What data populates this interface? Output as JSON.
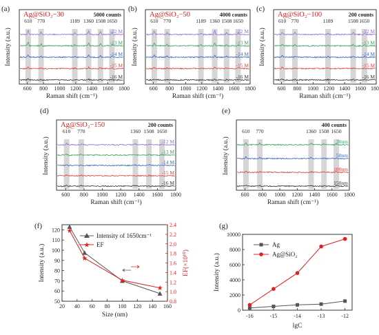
{
  "figure": {
    "panel_letters": [
      "(a)",
      "(b)",
      "(c)",
      "(d)",
      "(e)",
      "(f)",
      "(g)"
    ]
  },
  "chart_data": [
    {
      "id": "a",
      "type": "line",
      "title": "Ag@SiO₂−30",
      "scale_label": "5000 counts",
      "xlabel": "Raman shift (cm⁻¹)",
      "ylabel": "Intensity (a.u.)",
      "xlim": [
        500,
        1800
      ],
      "xticks": [
        600,
        800,
        1000,
        1200,
        1400,
        1600,
        1800
      ],
      "peaks": [
        {
          "x": 610,
          "label": "610"
        },
        {
          "x": 770,
          "label": "770"
        },
        {
          "x": 1189,
          "label": "1189"
        },
        {
          "x": 1360,
          "label": "1360"
        },
        {
          "x": 1508,
          "label": "1508"
        },
        {
          "x": 1650,
          "label": "1650"
        }
      ],
      "series": [
        {
          "name": "-12 M",
          "color": "#9370db",
          "amp": [
            6,
            4,
            2,
            5,
            4,
            3
          ]
        },
        {
          "name": "-13 M",
          "color": "#3aa060",
          "amp": [
            5,
            3,
            2,
            4,
            3,
            2
          ]
        },
        {
          "name": "-14 M",
          "color": "#3a66c8",
          "amp": [
            4,
            2,
            1.5,
            3,
            2,
            2
          ]
        },
        {
          "name": "-15 M",
          "color": "#e04040",
          "amp": [
            3,
            1.5,
            1,
            2,
            1.5,
            1.5
          ]
        },
        {
          "name": "-16 M",
          "color": "#333333",
          "amp": [
            2,
            1,
            0.5,
            1,
            1,
            1
          ]
        }
      ]
    },
    {
      "id": "b",
      "type": "line",
      "title": "Ag@SiO₂−50",
      "scale_label": "4000 counts",
      "xlabel": "Raman shift (cm⁻¹)",
      "ylabel": "Intensity (a.u.)",
      "xlim": [
        500,
        1800
      ],
      "xticks": [
        600,
        800,
        1000,
        1200,
        1400,
        1600,
        1800
      ],
      "peaks": [
        {
          "x": 610,
          "label": "610"
        },
        {
          "x": 770,
          "label": "770"
        },
        {
          "x": 1189,
          "label": "1189"
        },
        {
          "x": 1360,
          "label": "1360"
        },
        {
          "x": 1508,
          "label": "1508"
        },
        {
          "x": 1650,
          "label": "1650"
        }
      ],
      "series": [
        {
          "name": "-12 M",
          "color": "#9370db",
          "amp": [
            5,
            3,
            2,
            6,
            3,
            2
          ]
        },
        {
          "name": "-13 M",
          "color": "#3aa060",
          "amp": [
            4,
            2,
            1.5,
            4,
            2,
            1.5
          ]
        },
        {
          "name": "-14 M",
          "color": "#3a66c8",
          "amp": [
            3,
            1.5,
            1,
            3,
            1.5,
            1
          ]
        },
        {
          "name": "-15 M",
          "color": "#e04040",
          "amp": [
            2,
            1,
            0.5,
            2,
            1,
            1
          ]
        },
        {
          "name": "-16 M",
          "color": "#333333",
          "amp": [
            1,
            0.5,
            0.5,
            1,
            0.5,
            0.5
          ]
        }
      ]
    },
    {
      "id": "c",
      "type": "line",
      "title": "Ag@SiO₂−100",
      "scale_label": "200 counts",
      "xlabel": "Raman shift (cm⁻¹)",
      "ylabel": "Intensity (a.u.)",
      "xlim": [
        500,
        1800
      ],
      "xticks": [
        600,
        800,
        1000,
        1200,
        1400,
        1600,
        1800
      ],
      "peaks": [
        {
          "x": 610,
          "label": "610"
        },
        {
          "x": 770,
          "label": "770"
        },
        {
          "x": 1189,
          "label": "1189"
        },
        {
          "x": 1508,
          "label": "1508"
        },
        {
          "x": 1650,
          "label": "1650"
        }
      ],
      "series": [
        {
          "name": "-12 M",
          "color": "#9370db",
          "amp": [
            4,
            3,
            2,
            3,
            2
          ]
        },
        {
          "name": "-13 M",
          "color": "#3aa060",
          "amp": [
            3,
            2,
            1.5,
            2,
            1.5
          ]
        },
        {
          "name": "-14 M",
          "color": "#3a66c8",
          "amp": [
            2.5,
            1.5,
            1,
            1.5,
            1
          ]
        },
        {
          "name": "-15 M",
          "color": "#e04040",
          "amp": [
            2,
            1,
            1,
            1,
            1
          ]
        },
        {
          "name": "-16 M",
          "color": "#333333",
          "amp": [
            1.5,
            1,
            0.5,
            1,
            0.5
          ]
        }
      ]
    },
    {
      "id": "d",
      "type": "line",
      "title": "Ag@SiO₂−150",
      "scale_label": "200 counts",
      "xlabel": "Raman shift (cm⁻¹)",
      "ylabel": "Intensity (a.u.)",
      "xlim": [
        500,
        1800
      ],
      "xticks": [
        600,
        800,
        1000,
        1200,
        1400,
        1600,
        1800
      ],
      "peaks": [
        {
          "x": 610,
          "label": "610"
        },
        {
          "x": 770,
          "label": "770"
        },
        {
          "x": 1360,
          "label": "1360"
        },
        {
          "x": 1508,
          "label": "1508"
        },
        {
          "x": 1650,
          "label": "1650"
        }
      ],
      "series": [
        {
          "name": "-12 M",
          "color": "#9370db",
          "amp": [
            2,
            1.5,
            1.5,
            1,
            1
          ]
        },
        {
          "name": "-13 M",
          "color": "#3aa060",
          "amp": [
            2,
            1.5,
            1,
            1,
            1
          ]
        },
        {
          "name": "-14 M",
          "color": "#3a66c8",
          "amp": [
            1.5,
            1,
            1,
            1,
            0.5
          ]
        },
        {
          "name": "-15 M",
          "color": "#e04040",
          "amp": [
            1.5,
            1,
            0.5,
            0.5,
            0.5
          ]
        },
        {
          "name": "-16 M",
          "color": "#333333",
          "amp": [
            1,
            0.5,
            0.5,
            0.5,
            0.5
          ]
        }
      ]
    },
    {
      "id": "e",
      "type": "line",
      "title": "",
      "scale_label": "400 counts",
      "xlabel": "Raman shift (cm⁻¹)",
      "ylabel": "Intensity (a.u.)",
      "xlim": [
        500,
        1800
      ],
      "xticks": [
        600,
        800,
        1000,
        1200,
        1400,
        1600,
        1800
      ],
      "peaks": [
        {
          "x": 610,
          "label": "610"
        },
        {
          "x": 770,
          "label": "770"
        },
        {
          "x": 1360,
          "label": "1360"
        },
        {
          "x": 1508,
          "label": "1508"
        },
        {
          "x": 1650,
          "label": "1650"
        }
      ],
      "series": [
        {
          "name": "30nm",
          "color": "#3aa060",
          "amp": [
            3,
            2,
            2,
            1.5,
            1.5
          ]
        },
        {
          "name": "50nm",
          "color": "#3a66c8",
          "amp": [
            2.5,
            1.5,
            1.5,
            1,
            1
          ]
        },
        {
          "name": "100nm",
          "color": "#e04040",
          "amp": [
            2,
            1,
            1,
            1,
            1
          ]
        },
        {
          "name": "150nm",
          "color": "#333333",
          "amp": [
            1.5,
            1,
            0.5,
            0.5,
            0.5
          ]
        }
      ]
    },
    {
      "id": "f",
      "type": "line",
      "xlabel": "Size (nm)",
      "ylabel": "Intensity (a.u.)",
      "ylabel_right": "EF(×10¹⁰)",
      "xlim": [
        20,
        160
      ],
      "xticks": [
        20,
        40,
        60,
        80,
        100,
        120,
        140,
        160
      ],
      "ylim": [
        50,
        125
      ],
      "yticks": [
        50,
        60,
        70,
        80,
        90,
        100,
        110,
        120
      ],
      "ylim_right": [
        0.8,
        2.4
      ],
      "yticks_right": [
        "0.8",
        "1.0",
        "1.2",
        "1.4",
        "1.6",
        "1.8",
        "2.0",
        "2.2",
        "2.4"
      ],
      "x": [
        30,
        50,
        100,
        150
      ],
      "series": [
        {
          "name": "Intensity of 1650cm⁻¹",
          "axis": "left",
          "color": "#555555",
          "values": [
            123,
            97.5,
            70,
            57.5
          ]
        },
        {
          "name": "EF",
          "axis": "right",
          "color": "#e02020",
          "values": [
            2.28,
            1.7,
            1.24,
            1.08
          ]
        }
      ],
      "legend": "top-right"
    },
    {
      "id": "g",
      "type": "line",
      "xlabel": "lgC",
      "ylabel": "Intensity (a.u.)",
      "x": [
        -16,
        -15,
        -14,
        -13,
        -12
      ],
      "xticks": [
        "-16",
        "-15",
        "-14",
        "-13",
        "-12"
      ],
      "xlim": [
        -16.3,
        -11.7
      ],
      "ylim": [
        0,
        10000
      ],
      "yticks": [
        0,
        2000,
        4000,
        6000,
        8000,
        10000
      ],
      "series": [
        {
          "name": "Ag",
          "color": "#555555",
          "values": [
            300,
            500,
            700,
            800,
            1200
          ]
        },
        {
          "name": "Ag@SiO₂",
          "color": "#e02020",
          "values": [
            700,
            2800,
            4900,
            8400,
            9400
          ]
        }
      ],
      "legend": "top-left"
    }
  ]
}
